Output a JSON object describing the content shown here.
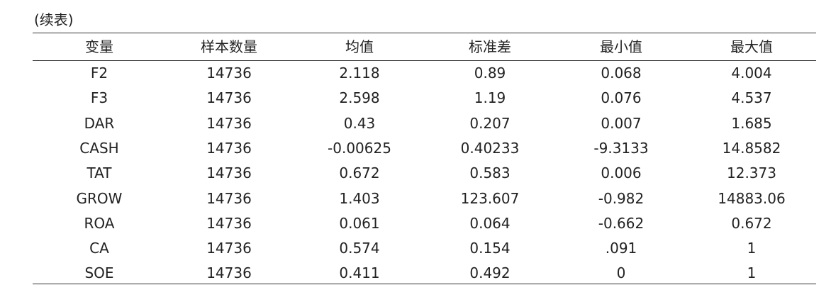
{
  "caption": "(续表)",
  "table": {
    "header": [
      "变量",
      "样本数量",
      "均值",
      "标准差",
      "最小值",
      "最大值"
    ],
    "rows": [
      [
        "F2",
        "14736",
        "2.118",
        "0.89",
        "0.068",
        "4.004"
      ],
      [
        "F3",
        "14736",
        "2.598",
        "1.19",
        "0.076",
        "4.537"
      ],
      [
        "DAR",
        "14736",
        "0.43",
        "0.207",
        "0.007",
        "1.685"
      ],
      [
        "CASH",
        "14736",
        "-0.00625",
        "0.40233",
        "-9.3133",
        "14.8582"
      ],
      [
        "TAT",
        "14736",
        "0.672",
        "0.583",
        "0.006",
        "12.373"
      ],
      [
        "GROW",
        "14736",
        "1.403",
        "123.607",
        "-0.982",
        "14883.06"
      ],
      [
        "ROA",
        "14736",
        "0.061",
        "0.064",
        "-0.662",
        "0.672"
      ],
      [
        "CA",
        "14736",
        "0.574",
        "0.154",
        ".091",
        "1"
      ],
      [
        "SOE",
        "14736",
        "0.411",
        "0.492",
        "0",
        "1"
      ]
    ]
  }
}
